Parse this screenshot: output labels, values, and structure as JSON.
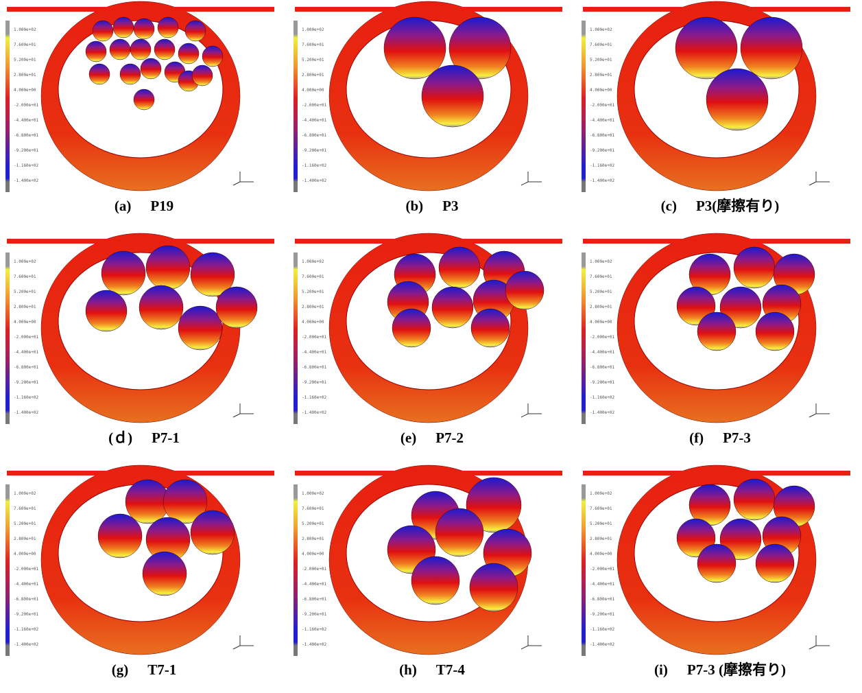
{
  "colorbar_labels": [
    "1.000e+02",
    "7.600e+01",
    "5.200e+01",
    "2.800e+01",
    "4.000e+00",
    "-2.000e+01",
    "-4.400e+01",
    "-6.800e+01",
    "-9.200e+01",
    "-1.160e+02",
    "-1.400e+02"
  ],
  "panels": [
    {
      "label": "(a)",
      "name": "P19"
    },
    {
      "label": "(b)",
      "name": "P3"
    },
    {
      "label": "(c)",
      "name": "P3(摩擦有り)"
    },
    {
      "label": "(ｄ)",
      "name": "P7-1"
    },
    {
      "label": "(e)",
      "name": "P7-2"
    },
    {
      "label": "(f)",
      "name": "P7-3"
    },
    {
      "label": "(g)",
      "name": "T7-1"
    },
    {
      "label": "(h)",
      "name": "T7-4"
    },
    {
      "label": "(i)",
      "name": "P7-3 (摩擦有り)"
    }
  ]
}
